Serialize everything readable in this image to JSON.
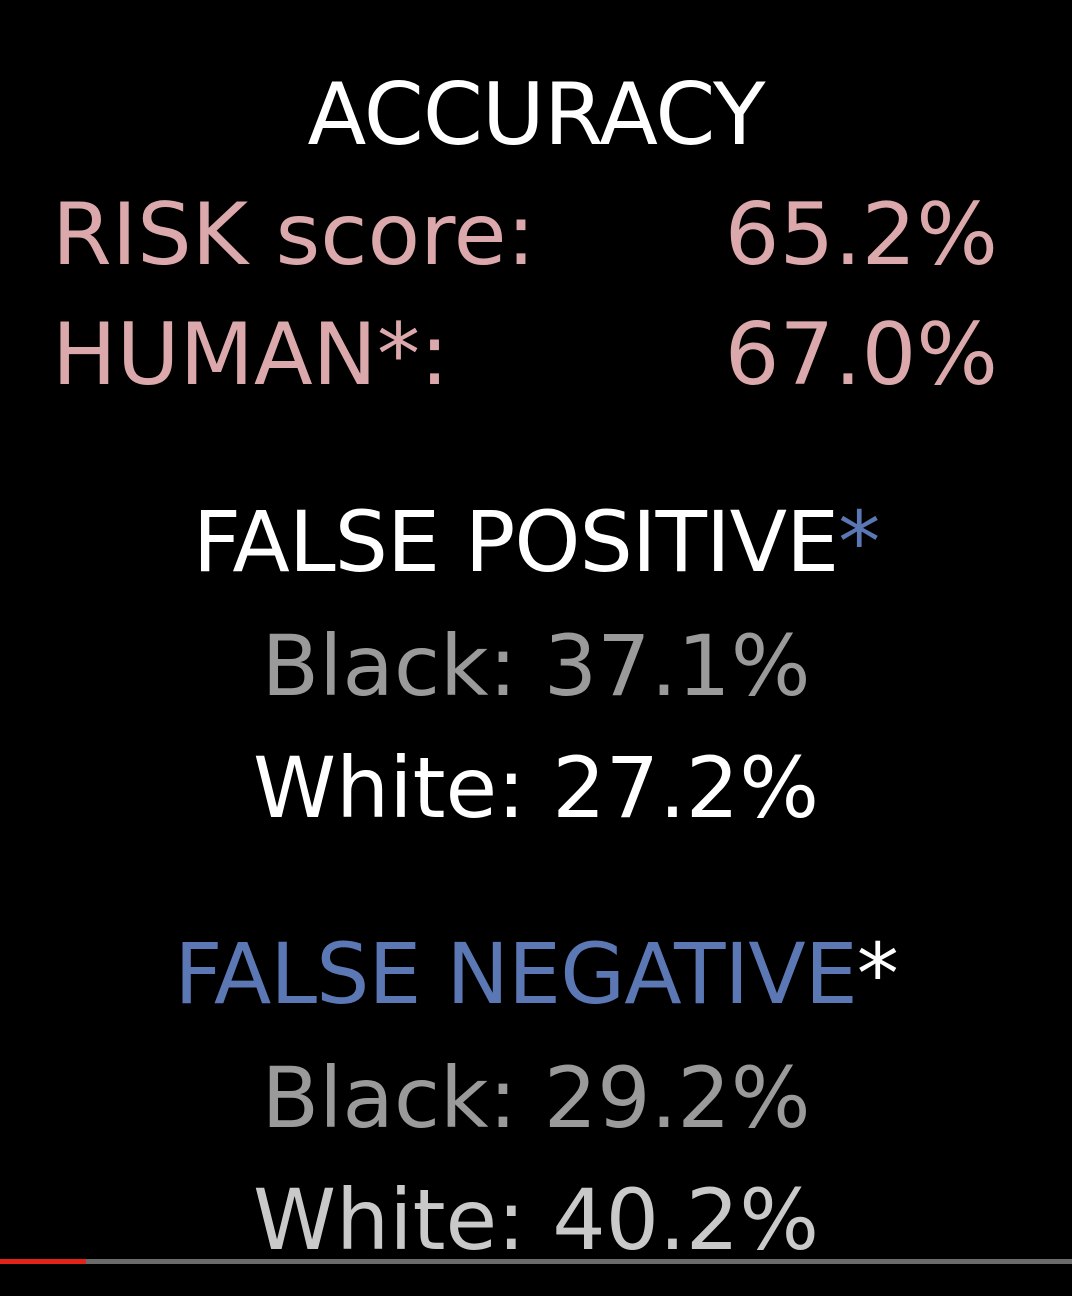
{
  "accuracy": {
    "title": "ACCURACY",
    "risk_label": "RISK score:",
    "risk_value": "65.2%",
    "human_label": "HUMAN*:",
    "human_value": "67.0%"
  },
  "false_positive": {
    "title": "FALSE POSITIVE",
    "star": "*",
    "black": "Black: 37.1%",
    "white": "White: 27.2%"
  },
  "false_negative": {
    "title": "FALSE NEGATIVE",
    "star": "*",
    "black": "Black: 29.2%",
    "white": "White: 40.2%"
  },
  "video_progress": {
    "played_fraction": 0.08,
    "played_color": "#e2231a",
    "track_color": "#6b6b6b"
  },
  "colors": {
    "background": "#000000",
    "pink": "#dba8ab",
    "blue": "#5b78b5",
    "gray": "#9a9a9a"
  }
}
